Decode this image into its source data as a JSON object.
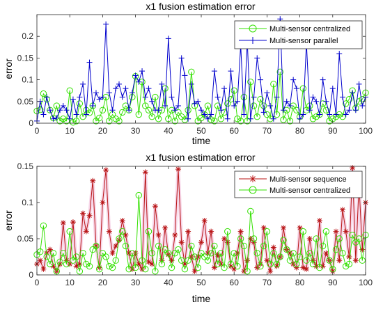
{
  "colors": {
    "centralized": "#33e000",
    "parallel": "#0000cc",
    "sequence": "#b81414",
    "axis": "#262626",
    "halo": "#f4c6e0"
  },
  "chart_data": [
    {
      "type": "line",
      "title": "x1 fusion estimation error",
      "xlabel": "time",
      "ylabel": "error",
      "xlim": [
        0,
        100
      ],
      "ylim": [
        0,
        0.25
      ],
      "xticks": [
        "0",
        "10",
        "20",
        "30",
        "40",
        "50",
        "60",
        "70",
        "80",
        "90",
        "100"
      ],
      "yticks": [
        "0",
        "0.05",
        "0.1",
        "0.15",
        "0.2"
      ],
      "legend_position": "top-right",
      "series": [
        {
          "name": "Multi-sensor centralized",
          "marker": "circle",
          "color_key": "centralized",
          "values": [
            0.028,
            0.031,
            0.068,
            0.055,
            0.03,
            0.012,
            0.04,
            0.005,
            0.01,
            0.005,
            0.075,
            0.002,
            0.005,
            0.045,
            0.015,
            0.03,
            0.024,
            0.04,
            0.005,
            0.012,
            0.03,
            0.06,
            0.005,
            0.02,
            0.01,
            0.005,
            0.025,
            0.04,
            0.03,
            0.06,
            0.108,
            0.02,
            0.095,
            0.04,
            0.03,
            0.015,
            0.06,
            0.01,
            0.03,
            0.08,
            0.01,
            0.03,
            0.005,
            0.025,
            0.015,
            0.008,
            0.03,
            0.118,
            0.04,
            0.005,
            0.012,
            0.02,
            0.04,
            0.008,
            0.005,
            0.04,
            0.01,
            0.025,
            0.045,
            0.055,
            0.075,
            0.01,
            0.005,
            0.06,
            0.005,
            0.095,
            0.04,
            0.015,
            0.055,
            0.04,
            0.02,
            0.01,
            0.09,
            0.02,
            0.118,
            0.008,
            0.03,
            0.005,
            0.04,
            0.03,
            0.015,
            0.08,
            0.03,
            0.04,
            0.01,
            0.015,
            0.02,
            0.045,
            0.03,
            0.005,
            0.01,
            0.015,
            0.02,
            0.015,
            0.045,
            0.055,
            0.075,
            0.035,
            0.05,
            0.055,
            0.07
          ]
        },
        {
          "name": "Multi-sensor parallel",
          "marker": "plus",
          "color_key": "parallel",
          "values": [
            0.005,
            0.05,
            0.02,
            0.06,
            0.03,
            0.01,
            0.012,
            0.03,
            0.04,
            0.03,
            0.01,
            0.055,
            0.02,
            0.06,
            0.09,
            0.02,
            0.14,
            0.04,
            0.07,
            0.055,
            0.06,
            0.228,
            0.07,
            0.03,
            0.08,
            0.09,
            0.06,
            0.08,
            0.03,
            0.07,
            0.11,
            0.095,
            0.12,
            0.06,
            0.08,
            0.05,
            0.03,
            0.03,
            0.09,
            0.04,
            0.195,
            0.06,
            0.03,
            0.04,
            0.15,
            0.11,
            0.01,
            0.09,
            0.045,
            0.05,
            0.03,
            0.02,
            0.01,
            0.02,
            0.12,
            0.06,
            0.03,
            0.08,
            0.01,
            0.12,
            0.04,
            0.05,
            0.18,
            0.02,
            0.19,
            0.01,
            0.06,
            0.15,
            0.1,
            0.025,
            0.07,
            0.04,
            0.01,
            0.06,
            0.24,
            0.03,
            0.05,
            0.04,
            0.1,
            0.08,
            0.01,
            0.02,
            0.185,
            0.03,
            0.06,
            0.05,
            0.02,
            0.1,
            0.05,
            0.02,
            0.08,
            0.02,
            0.16,
            0.06,
            0.02,
            0.03,
            0.07,
            0.03,
            0.09,
            0.04,
            0.06
          ]
        }
      ]
    },
    {
      "type": "line",
      "title": "x1 fusion estimation error",
      "xlabel": "time",
      "ylabel": "error",
      "xlim": [
        0,
        100
      ],
      "ylim": [
        0,
        0.15
      ],
      "xticks": [
        "0",
        "10",
        "20",
        "30",
        "40",
        "50",
        "60",
        "70",
        "80",
        "90",
        "100"
      ],
      "yticks": [
        "0",
        "0.05",
        "0.1",
        "0.15"
      ],
      "legend_position": "top-right",
      "series": [
        {
          "name": "Multi-sensor sequence",
          "marker": "asterisk",
          "color_key": "sequence",
          "values": [
            0.015,
            0.02,
            0.008,
            0.03,
            0.035,
            0.012,
            0.005,
            0.015,
            0.072,
            0.02,
            0.015,
            0.073,
            0.012,
            0.015,
            0.085,
            0.06,
            0.082,
            0.13,
            0.04,
            0.01,
            0.1,
            0.145,
            0.06,
            0.03,
            0.04,
            0.048,
            0.075,
            0.055,
            0.03,
            0.008,
            0.03,
            0.015,
            0.008,
            0.142,
            0.018,
            0.015,
            0.095,
            0.055,
            0.02,
            0.065,
            0.028,
            0.02,
            0.055,
            0.146,
            0.045,
            0.015,
            0.06,
            0.025,
            0.005,
            0.025,
            0.045,
            0.075,
            0.03,
            0.06,
            0.01,
            0.028,
            0.015,
            0.05,
            0.045,
            0.012,
            0.008,
            0.03,
            0.06,
            0.005,
            0.02,
            0.05,
            0.045,
            0.01,
            0.015,
            0.065,
            0.02,
            0.005,
            0.038,
            0.012,
            0.025,
            0.065,
            0.035,
            0.03,
            0.015,
            0.01,
            0.065,
            0.01,
            0.008,
            0.05,
            0.02,
            0.012,
            0.075,
            0.012,
            0.03,
            0.02,
            0.005,
            0.06,
            0.02,
            0.09,
            0.06,
            0.025,
            0.148,
            0.02,
            0.125,
            0.035,
            0.1
          ]
        },
        {
          "name": "Multi-sensor centralized",
          "marker": "circle",
          "color_key": "centralized",
          "values": [
            0.028,
            0.032,
            0.068,
            0.025,
            0.015,
            0.03,
            0.005,
            0.018,
            0.03,
            0.015,
            0.06,
            0.02,
            0.025,
            0.005,
            0.03,
            0.015,
            0.012,
            0.035,
            0.04,
            0.008,
            0.03,
            0.025,
            0.012,
            0.01,
            0.02,
            0.05,
            0.06,
            0.04,
            0.008,
            0.03,
            0.01,
            0.11,
            0.02,
            0.008,
            0.06,
            0.03,
            0.005,
            0.04,
            0.015,
            0.035,
            0.03,
            0.01,
            0.03,
            0.035,
            0.02,
            0.008,
            0.02,
            0.04,
            0.025,
            0.01,
            0.03,
            0.025,
            0.02,
            0.03,
            0.04,
            0.015,
            0.03,
            0.01,
            0.06,
            0.015,
            0.03,
            0.012,
            0.05,
            0.04,
            0.005,
            0.088,
            0.05,
            0.03,
            0.012,
            0.04,
            0.06,
            0.015,
            0.03,
            0.015,
            0.025,
            0.048,
            0.035,
            0.02,
            0.03,
            0.015,
            0.025,
            0.06,
            0.02,
            0.03,
            0.015,
            0.05,
            0.01,
            0.04,
            0.06,
            0.02,
            0.008,
            0.035,
            0.05,
            0.03,
            0.012,
            0.015,
            0.055,
            0.045,
            0.05,
            0.02,
            0.055
          ]
        }
      ]
    }
  ]
}
